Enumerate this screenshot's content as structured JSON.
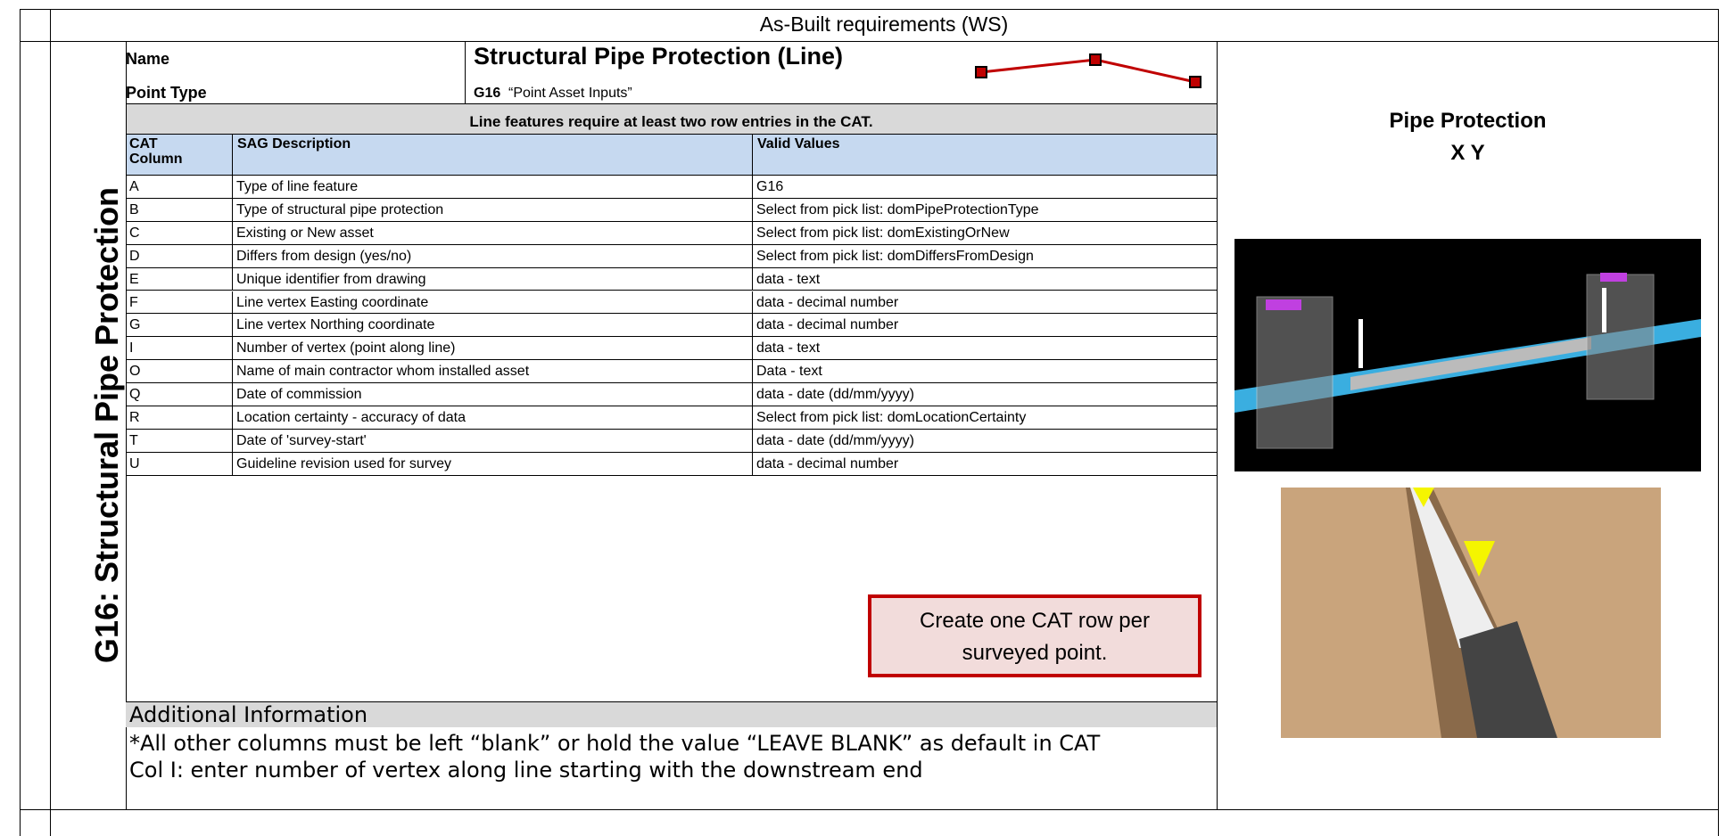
{
  "header": {
    "title": "As-Built requirements (WS)"
  },
  "side_label": "G16: Structural Pipe Protection",
  "asset": {
    "name_label": "Name",
    "name": "Structural Pipe Protection (Line)",
    "point_type_label": "Point Type",
    "point_type_code": "G16",
    "point_type": "“Point Asset Inputs”"
  },
  "notice": "Line features require at least two row entries in the CAT.",
  "table": {
    "headers": [
      "CAT Column",
      "SAG Description",
      "Valid Values"
    ],
    "rows": [
      [
        "A",
        "Type of line feature",
        "G16"
      ],
      [
        "B",
        "Type of structural pipe protection",
        "Select from pick list: domPipeProtectionType"
      ],
      [
        "C",
        "Existing or New asset",
        "Select from pick list: domExistingOrNew"
      ],
      [
        "D",
        "Differs from design (yes/no)",
        "Select from pick list: domDiffersFromDesign"
      ],
      [
        "E",
        "Unique identifier from drawing",
        "data - text"
      ],
      [
        "F",
        "Line vertex Easting coordinate",
        "data - decimal number"
      ],
      [
        "G",
        "Line vertex Northing coordinate",
        "data - decimal number"
      ],
      [
        "I",
        "Number of vertex (point along line)",
        "data - text"
      ],
      [
        "O",
        "Name of main contractor whom installed asset",
        "Data - text"
      ],
      [
        "Q",
        "Date of commission",
        "data - date (dd/mm/yyyy)"
      ],
      [
        "R",
        "Location certainty - accuracy of data",
        "Select from pick list: domLocationCertainty"
      ],
      [
        "T",
        "Date of 'survey-start'",
        "data - date (dd/mm/yyyy)"
      ],
      [
        "U",
        "Guideline revision used for survey",
        "data - decimal number"
      ]
    ]
  },
  "callout": "Create one CAT row per surveyed point.",
  "additional": {
    "title": "Additional Information",
    "lines": [
      "*All other columns must be left “blank” or hold the value “LEAVE BLANK” as default in CAT",
      "Col I: enter number of vertex along line starting with the downstream end"
    ]
  },
  "figure": {
    "title": "Pipe Protection",
    "subtitle": "X Y"
  }
}
